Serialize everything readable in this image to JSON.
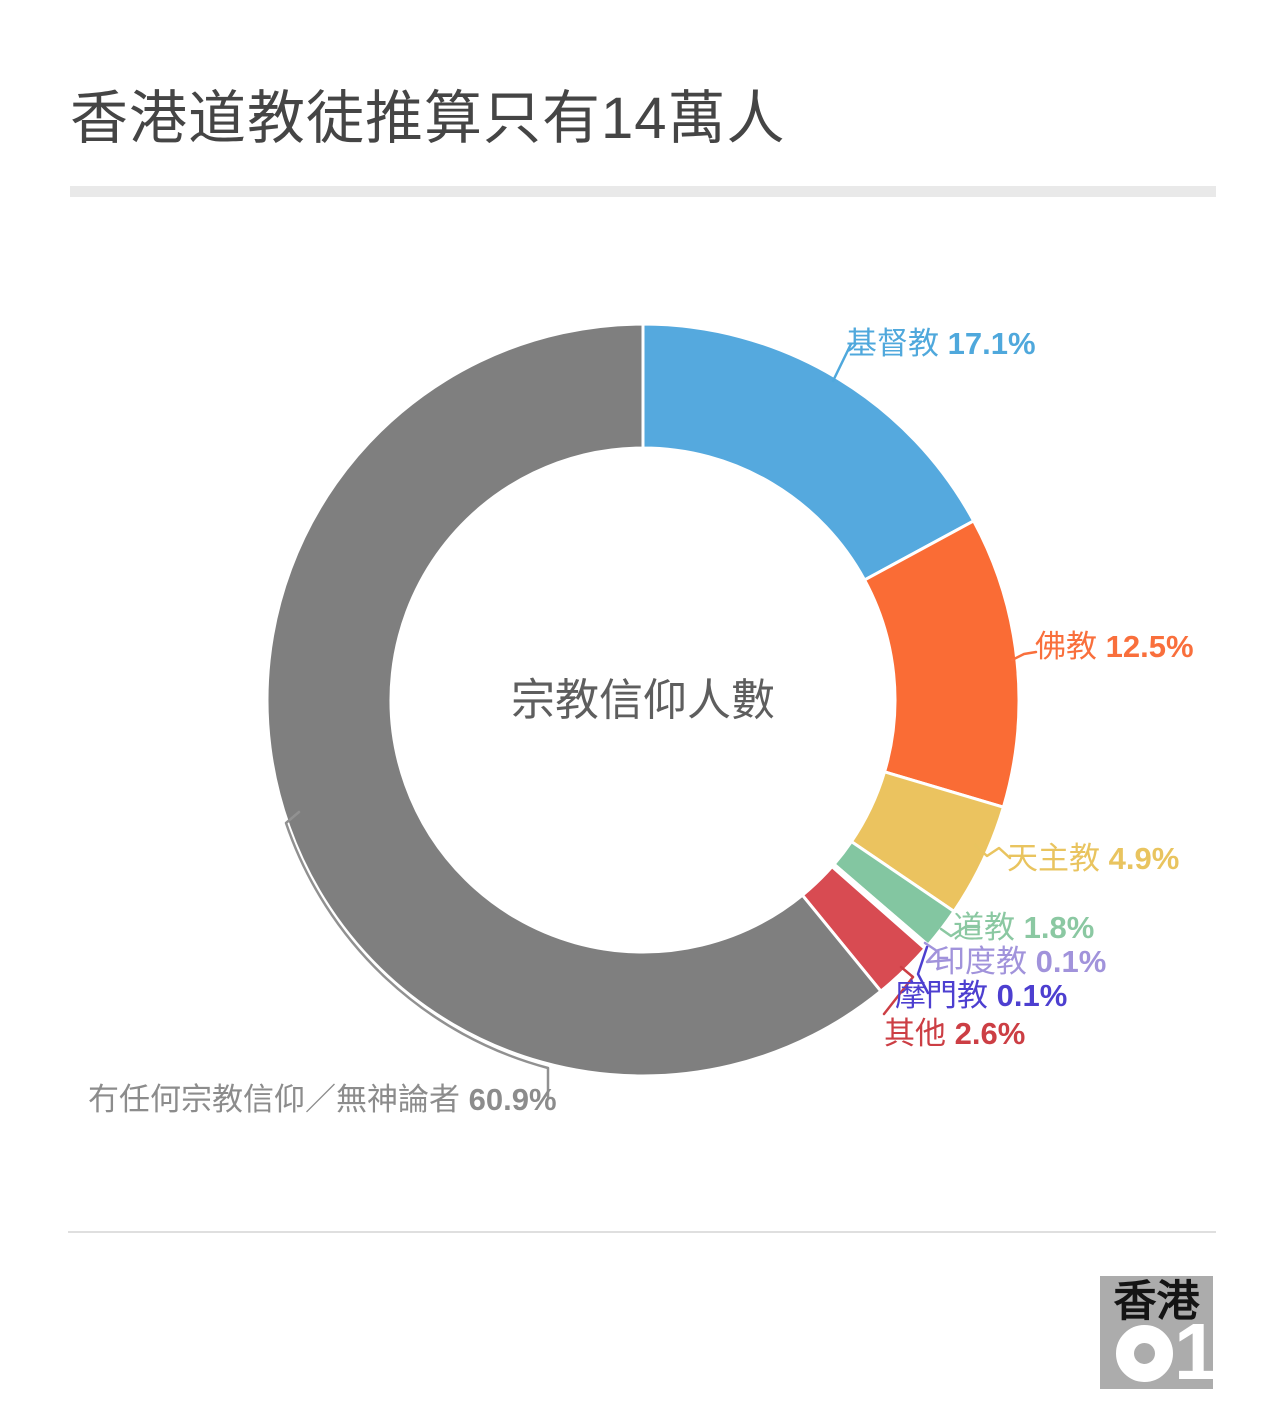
{
  "chart_data": {
    "type": "pie",
    "subtype": "donut",
    "title": "香港道教徒推算只有14萬人",
    "center_label": "宗教信仰人數",
    "unit": "%",
    "start_angle": "12-oclock",
    "direction": "clockwise",
    "legend_position": "callout-labels",
    "series": [
      {
        "name": "基督教",
        "value": 17.1,
        "color": "#55A9DE",
        "label_color": "#4FA8DC"
      },
      {
        "name": "佛教",
        "value": 12.5,
        "color": "#FA6C35",
        "label_color": "#F96F3C"
      },
      {
        "name": "天主教",
        "value": 4.9,
        "color": "#EBC35F",
        "label_color": "#E9C45F"
      },
      {
        "name": "道教",
        "value": 1.8,
        "color": "#83C6A1",
        "label_color": "#8BC8A2"
      },
      {
        "name": "印度教",
        "value": 0.1,
        "color": "#A193DB",
        "label_color": "#A193DB"
      },
      {
        "name": "摩門教",
        "value": 0.1,
        "color": "#4D41CE",
        "label_color": "#4D3FD0"
      },
      {
        "name": "其他",
        "value": 2.6,
        "color": "#D84B52",
        "label_color": "#CC3E44"
      },
      {
        "name": "冇任何宗教信仰／無神論者",
        "value": 60.9,
        "color": "#7F7F7F",
        "label_color": "#8C8C8C"
      }
    ]
  },
  "logo": {
    "top": "香港",
    "zero": "0",
    "one": "1"
  }
}
